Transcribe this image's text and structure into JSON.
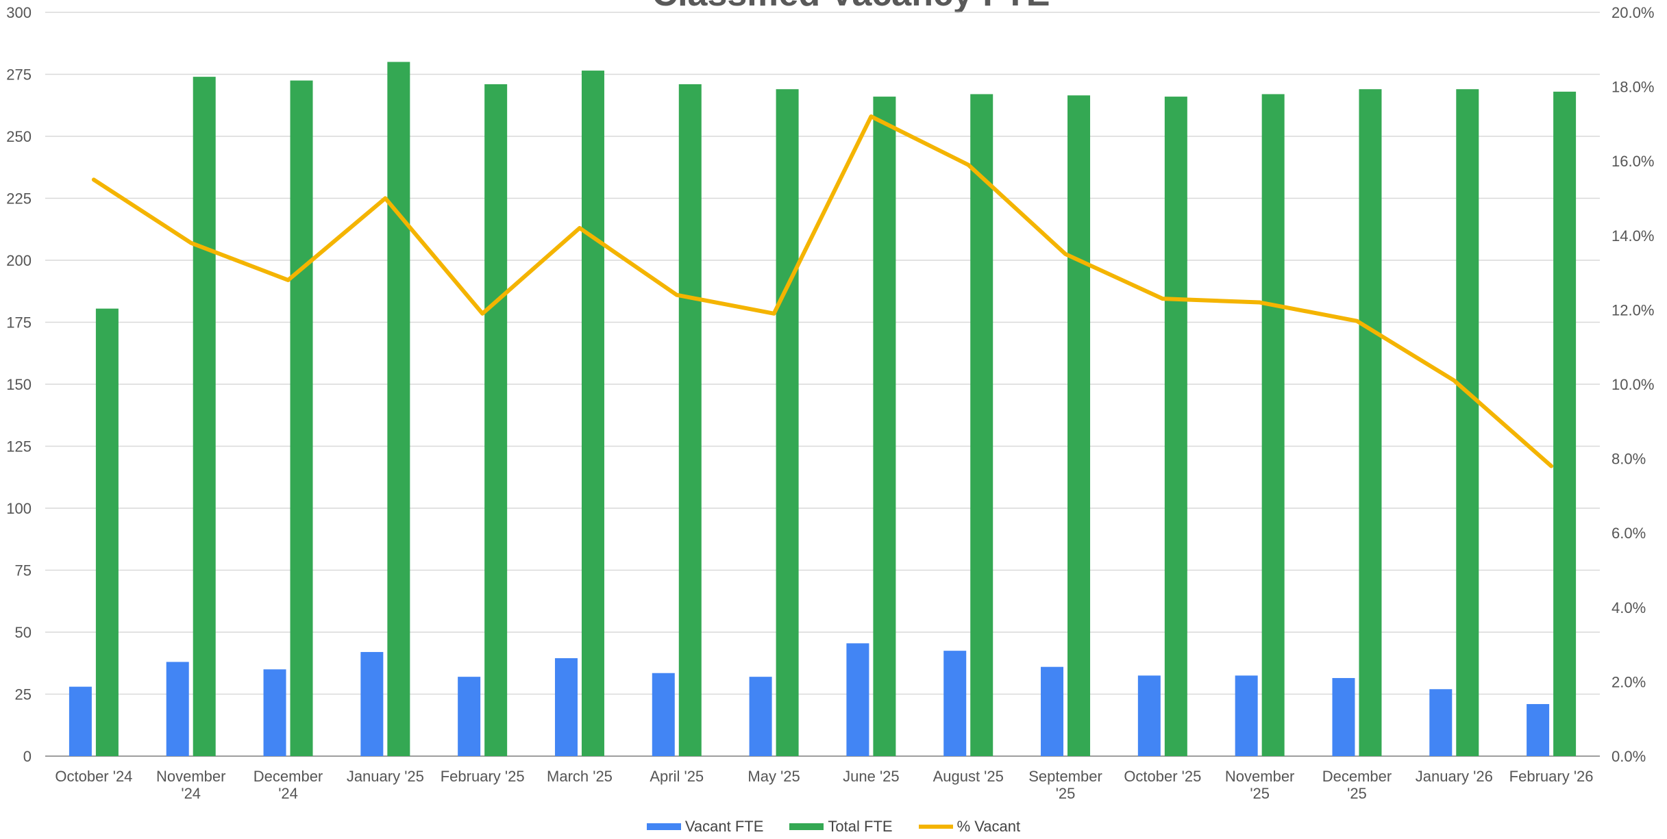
{
  "chart_data": {
    "type": "bar",
    "title": "Classified Vacancy FTE",
    "categories": [
      "October '24",
      "November '24",
      "December '24",
      "January '25",
      "February '25",
      "March '25",
      "April '25",
      "May '25",
      "June '25",
      "August '25",
      "September '25",
      "October '25",
      "November '25",
      "December '25",
      "January '26",
      "February '26"
    ],
    "category_lines": [
      [
        "October '24"
      ],
      [
        "November",
        "'24"
      ],
      [
        "December",
        "'24"
      ],
      [
        "January '25"
      ],
      [
        "February '25"
      ],
      [
        "March '25"
      ],
      [
        "April '25"
      ],
      [
        "May '25"
      ],
      [
        "June '25"
      ],
      [
        "August '25"
      ],
      [
        "September",
        "'25"
      ],
      [
        "October '25"
      ],
      [
        "November",
        "'25"
      ],
      [
        "December",
        "'25"
      ],
      [
        "January '26"
      ],
      [
        "February '26"
      ]
    ],
    "series": [
      {
        "name": "Vacant FTE",
        "type": "bar",
        "axis": "left",
        "color": "#4285F4",
        "values": [
          28,
          38,
          35,
          42,
          32,
          39.5,
          33.5,
          32,
          45.5,
          42.5,
          36,
          32.5,
          32.5,
          31.5,
          27,
          21
        ]
      },
      {
        "name": "Total FTE",
        "type": "bar",
        "axis": "left",
        "color": "#34A853",
        "values": [
          180.5,
          274,
          272.5,
          280,
          271,
          276.5,
          271,
          269,
          266,
          267,
          266.5,
          266,
          267,
          269,
          269,
          268
        ]
      },
      {
        "name": "% Vacant",
        "type": "line",
        "axis": "right",
        "color": "#F4B400",
        "values": [
          15.5,
          13.8,
          12.8,
          15.0,
          11.9,
          14.2,
          12.4,
          11.9,
          17.2,
          15.9,
          13.5,
          12.3,
          12.2,
          11.7,
          10.1,
          7.8
        ]
      }
    ],
    "y_left": {
      "min": 0,
      "max": 300,
      "ticks": [
        "0",
        "25",
        "50",
        "75",
        "100",
        "125",
        "150",
        "175",
        "200",
        "225",
        "250",
        "275",
        "300"
      ]
    },
    "y_right": {
      "min": 0,
      "max": 20,
      "ticks": [
        "0.0%",
        "2.0%",
        "4.0%",
        "6.0%",
        "8.0%",
        "10.0%",
        "12.0%",
        "14.0%",
        "16.0%",
        "18.0%",
        "20.0%"
      ]
    },
    "grid": true,
    "legend_position": "bottom"
  }
}
